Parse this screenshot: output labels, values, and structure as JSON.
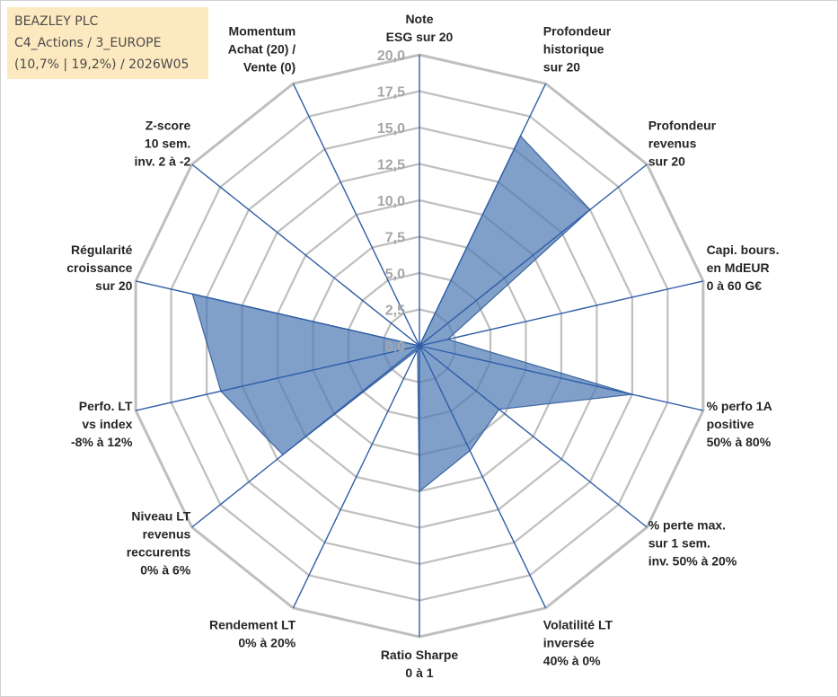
{
  "info": {
    "line1": "BEAZLEY PLC",
    "line2": "C4_Actions / 3_EUROPE",
    "line3": "(10,7% | 19,2%) / 2026W05"
  },
  "chart_data": {
    "type": "radar",
    "title": "",
    "grid": true,
    "rmin": 0,
    "rmax": 20,
    "ticks": [
      "0,0",
      "2,5",
      "5,0",
      "7,5",
      "10,0",
      "12,5",
      "15,0",
      "17,5",
      "20,0"
    ],
    "tick_values": [
      0,
      2.5,
      5,
      7.5,
      10,
      12.5,
      15,
      17.5,
      20
    ],
    "categories": [
      [
        "Note",
        "ESG sur 20"
      ],
      [
        "Profondeur",
        "historique",
        "sur 20"
      ],
      [
        "Profondeur",
        "revenus",
        "sur 20"
      ],
      [
        "Capi. bours.",
        "en MdEUR",
        "0 à 60 G€"
      ],
      [
        "% perfo 1A",
        "positive",
        "50% à 80%"
      ],
      [
        "% perte max.",
        "sur 1 sem.",
        "inv. 50% à 20%"
      ],
      [
        "Volatilité LT",
        "inversée",
        "40% à 0%"
      ],
      [
        "Ratio Sharpe",
        "0 à 1"
      ],
      [
        "Rendement LT",
        "0% à 20%"
      ],
      [
        "Niveau LT",
        "revenus",
        "reccurents",
        "0% à 6%"
      ],
      [
        "Perfo. LT",
        "vs index",
        "-8% à 12%"
      ],
      [
        "Régularité",
        "croissance",
        "sur 20"
      ],
      [
        "Z-score",
        "10 sem.",
        "inv. 2 à -2"
      ],
      [
        "Momentum",
        "Achat (20) /",
        "Vente (0)"
      ]
    ],
    "series": [
      {
        "values": [
          0,
          16,
          15,
          2,
          15,
          7,
          8,
          10,
          0.3,
          12,
          14,
          16,
          0,
          0
        ],
        "fill": "#4f7bb5",
        "fill_opacity": 0.72,
        "stroke": "#3c64a0"
      }
    ],
    "colors": {
      "grid": "#bfbfbf",
      "spoke": "#2f5ea8",
      "tick_label": "#a6a6a6",
      "category_label": "#262626"
    }
  }
}
